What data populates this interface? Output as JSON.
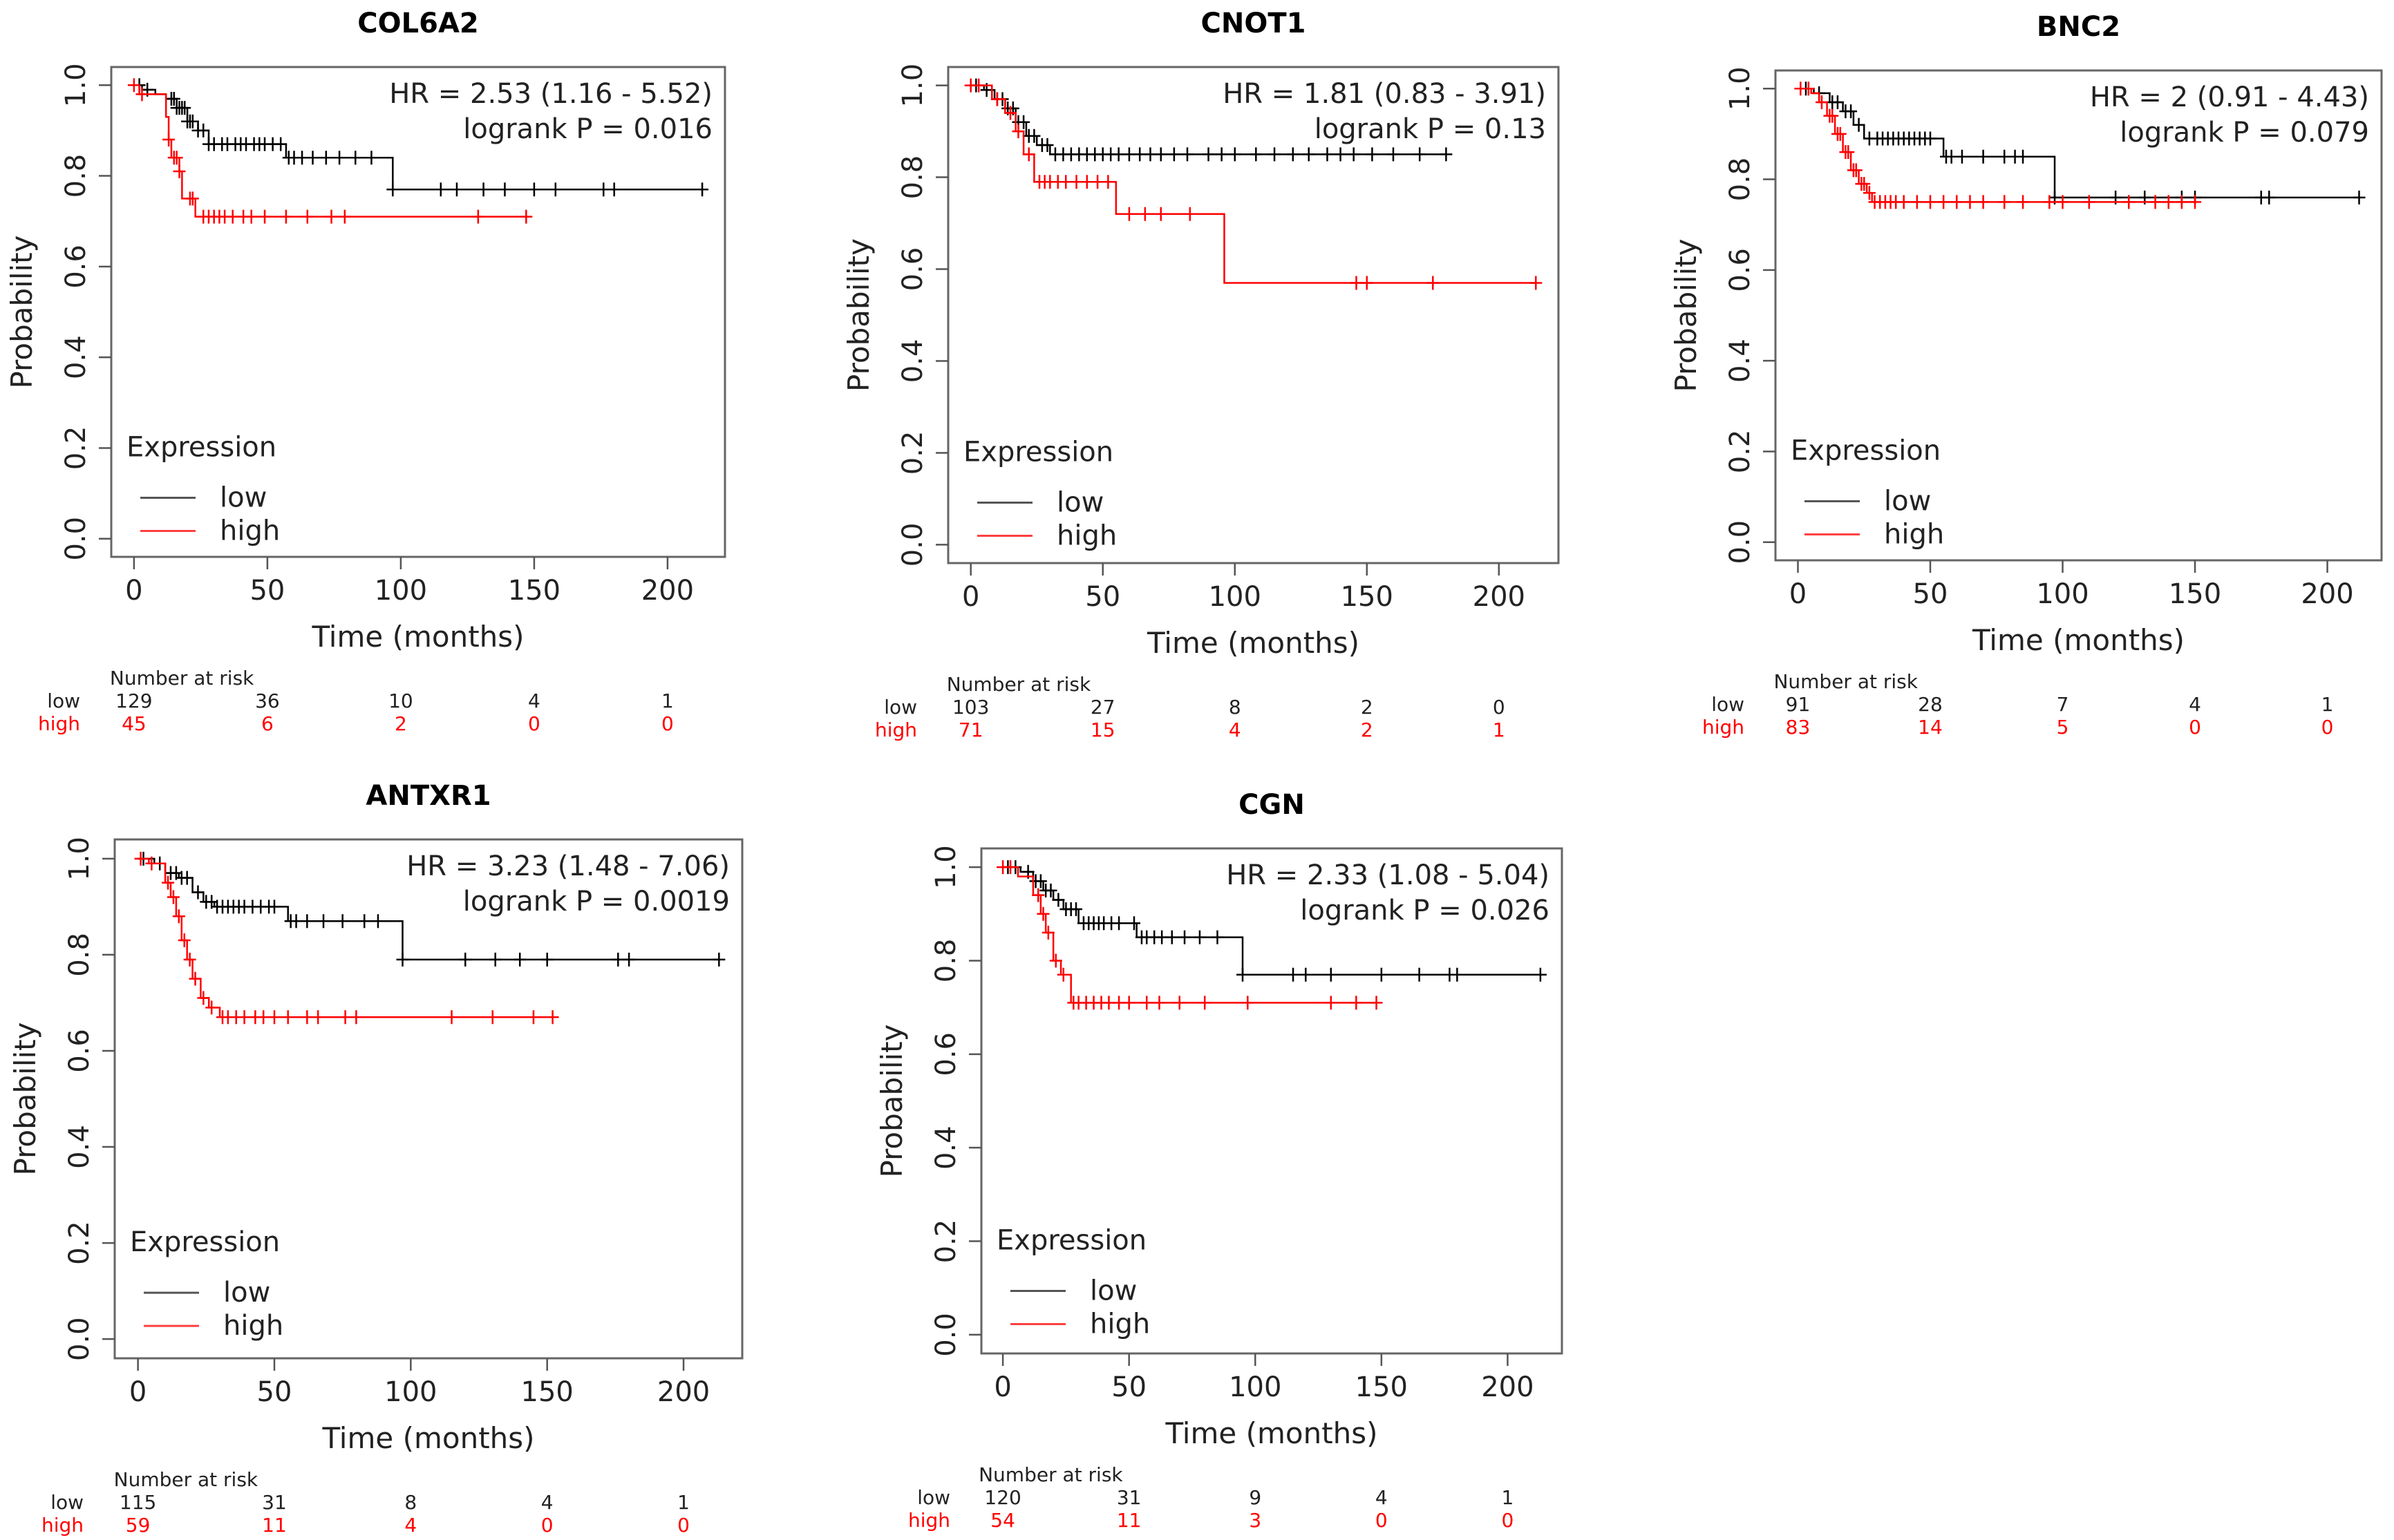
{
  "chart_data": [
    {
      "type": "line",
      "subtype": "kaplan-meier",
      "title": "COL6A2",
      "hr_text": "HR = 2.53 (1.16 - 5.52)",
      "logrank_text": "logrank P = 0.016",
      "xlabel": "Time (months)",
      "ylabel": "Probability",
      "xlim": [
        0,
        213
      ],
      "ylim": [
        0,
        1
      ],
      "xticks": [
        "0",
        "50",
        "100",
        "150",
        "200"
      ],
      "yticks": [
        "0.0",
        "0.2",
        "0.4",
        "0.6",
        "0.8",
        "1.0"
      ],
      "legend": {
        "title": "Expression",
        "low": "low",
        "high": "high",
        "placement": "bottom-left"
      },
      "risk": {
        "title": "Number at risk",
        "low_label": "low",
        "high_label": "high",
        "times": [
          0,
          50,
          100,
          150,
          200
        ],
        "low": [
          "129",
          "36",
          "10",
          "4",
          "1"
        ],
        "high": [
          "45",
          "6",
          "2",
          "0",
          "0"
        ]
      },
      "series": [
        {
          "name": "low",
          "color": "#000000",
          "steps": [
            [
              0,
              1
            ],
            [
              3,
              0.99
            ],
            [
              8,
              0.98
            ],
            [
              12,
              0.97
            ],
            [
              16,
              0.95
            ],
            [
              20,
              0.92
            ],
            [
              24,
              0.9
            ],
            [
              28,
              0.87
            ],
            [
              57,
              0.84
            ],
            [
              97,
              0.77
            ],
            [
              213,
              0.77
            ]
          ],
          "censors": [
            2,
            5,
            14,
            15,
            16,
            17,
            18,
            19,
            20,
            21,
            22,
            24,
            26,
            28,
            30,
            33,
            35,
            38,
            40,
            42,
            45,
            47,
            49,
            52,
            55,
            58,
            60,
            63,
            67,
            72,
            77,
            83,
            89,
            97,
            115,
            121,
            131,
            139,
            150,
            158,
            176,
            180,
            213
          ]
        },
        {
          "name": "high",
          "color": "#ff0000",
          "steps": [
            [
              0,
              1
            ],
            [
              2,
              0.98
            ],
            [
              12,
              0.93
            ],
            [
              13,
              0.88
            ],
            [
              14,
              0.84
            ],
            [
              17,
              0.81
            ],
            [
              18,
              0.75
            ],
            [
              23,
              0.71
            ],
            [
              147,
              0.71
            ]
          ],
          "censors": [
            0,
            3,
            13,
            15,
            16,
            17,
            21,
            22,
            26,
            28,
            30,
            32,
            34,
            37,
            41,
            44,
            49,
            57,
            65,
            74,
            79,
            129,
            147
          ]
        }
      ]
    },
    {
      "type": "line",
      "subtype": "kaplan-meier",
      "title": "CNOT1",
      "hr_text": "HR = 1.81 (0.83 - 3.91)",
      "logrank_text": "logrank P = 0.13",
      "xlabel": "Time (months)",
      "ylabel": "Probability",
      "xlim": [
        0,
        214
      ],
      "ylim": [
        0,
        1
      ],
      "xticks": [
        "0",
        "50",
        "100",
        "150",
        "200"
      ],
      "yticks": [
        "0.0",
        "0.2",
        "0.4",
        "0.6",
        "0.8",
        "1.0"
      ],
      "legend": {
        "title": "Expression",
        "low": "low",
        "high": "high",
        "placement": "bottom-left"
      },
      "risk": {
        "title": "Number at risk",
        "low_label": "low",
        "high_label": "high",
        "times": [
          0,
          50,
          100,
          150,
          200
        ],
        "low": [
          "103",
          "27",
          "8",
          "2",
          "0"
        ],
        "high": [
          "71",
          "15",
          "4",
          "2",
          "1"
        ]
      },
      "series": [
        {
          "name": "low",
          "color": "#000000",
          "steps": [
            [
              0,
              1
            ],
            [
              5,
              0.99
            ],
            [
              9,
              0.97
            ],
            [
              13,
              0.95
            ],
            [
              17,
              0.92
            ],
            [
              21,
              0.89
            ],
            [
              25,
              0.87
            ],
            [
              30,
              0.85
            ],
            [
              180,
              0.85
            ]
          ],
          "censors": [
            2,
            6,
            10,
            12,
            14,
            16,
            18,
            20,
            22,
            24,
            27,
            29,
            32,
            35,
            38,
            41,
            44,
            47,
            50,
            53,
            56,
            60,
            64,
            68,
            72,
            77,
            82,
            90,
            95,
            100,
            108,
            115,
            122,
            128,
            135,
            140,
            145,
            152,
            160,
            170,
            180
          ]
        },
        {
          "name": "high",
          "color": "#ff0000",
          "steps": [
            [
              0,
              1
            ],
            [
              8,
              0.97
            ],
            [
              13,
              0.94
            ],
            [
              17,
              0.9
            ],
            [
              20,
              0.85
            ],
            [
              24,
              0.79
            ],
            [
              55,
              0.72
            ],
            [
              96,
              0.57
            ],
            [
              214,
              0.57
            ]
          ],
          "censors": [
            0,
            3,
            10,
            15,
            18,
            22,
            26,
            28,
            30,
            33,
            36,
            40,
            44,
            48,
            52,
            60,
            66,
            72,
            83,
            146,
            150,
            175,
            214
          ]
        }
      ]
    },
    {
      "type": "line",
      "subtype": "kaplan-meier",
      "title": "BNC2",
      "hr_text": "HR = 2 (0.91 - 4.43)",
      "logrank_text": "logrank P = 0.079",
      "xlabel": "Time (months)",
      "ylabel": "Probability",
      "xlim": [
        0,
        212
      ],
      "ylim": [
        0,
        1
      ],
      "xticks": [
        "0",
        "50",
        "100",
        "150",
        "200"
      ],
      "yticks": [
        "0.0",
        "0.2",
        "0.4",
        "0.6",
        "0.8",
        "1.0"
      ],
      "legend": {
        "title": "Expression",
        "low": "low",
        "high": "high",
        "placement": "bottom-left"
      },
      "risk": {
        "title": "Number at risk",
        "low_label": "low",
        "high_label": "high",
        "times": [
          0,
          50,
          100,
          150,
          200
        ],
        "low": [
          "91",
          "28",
          "7",
          "4",
          "1"
        ],
        "high": [
          "83",
          "14",
          "5",
          "0",
          "0"
        ]
      },
      "series": [
        {
          "name": "low",
          "color": "#000000",
          "steps": [
            [
              0,
              1
            ],
            [
              6,
              0.99
            ],
            [
              12,
              0.97
            ],
            [
              17,
              0.95
            ],
            [
              21,
              0.92
            ],
            [
              25,
              0.89
            ],
            [
              55,
              0.85
            ],
            [
              97,
              0.76
            ],
            [
              212,
              0.76
            ]
          ],
          "censors": [
            3,
            8,
            13,
            15,
            18,
            20,
            23,
            27,
            30,
            32,
            34,
            36,
            38,
            40,
            42,
            44,
            46,
            48,
            50,
            56,
            58,
            62,
            70,
            78,
            82,
            85,
            97,
            120,
            131,
            145,
            150,
            175,
            178,
            212
          ]
        },
        {
          "name": "high",
          "color": "#ff0000",
          "steps": [
            [
              0,
              1
            ],
            [
              5,
              0.99
            ],
            [
              8,
              0.97
            ],
            [
              11,
              0.94
            ],
            [
              14,
              0.9
            ],
            [
              17,
              0.86
            ],
            [
              20,
              0.82
            ],
            [
              23,
              0.79
            ],
            [
              26,
              0.77
            ],
            [
              28,
              0.75
            ],
            [
              150,
              0.75
            ]
          ],
          "censors": [
            1,
            4,
            9,
            12,
            13,
            15,
            16,
            18,
            19,
            21,
            22,
            24,
            25,
            27,
            29,
            31,
            33,
            35,
            37,
            40,
            45,
            50,
            55,
            60,
            65,
            70,
            78,
            85,
            95,
            100,
            110,
            125,
            135,
            140,
            145,
            150
          ]
        }
      ]
    },
    {
      "type": "line",
      "subtype": "kaplan-meier",
      "title": "ANTXR1",
      "hr_text": "HR = 3.23 (1.48 - 7.06)",
      "logrank_text": "logrank P = 0.0019",
      "xlabel": "Time (months)",
      "ylabel": "Probability",
      "xlim": [
        0,
        213
      ],
      "ylim": [
        0,
        1
      ],
      "xticks": [
        "0",
        "50",
        "100",
        "150",
        "200"
      ],
      "yticks": [
        "0.0",
        "0.2",
        "0.4",
        "0.6",
        "0.8",
        "1.0"
      ],
      "legend": {
        "title": "Expression",
        "low": "low",
        "high": "high",
        "placement": "bottom-left"
      },
      "risk": {
        "title": "Number at risk",
        "low_label": "low",
        "high_label": "high",
        "times": [
          0,
          50,
          100,
          150,
          200
        ],
        "low": [
          "115",
          "31",
          "8",
          "4",
          "1"
        ],
        "high": [
          "59",
          "11",
          "4",
          "0",
          "0"
        ]
      },
      "series": [
        {
          "name": "low",
          "color": "#000000",
          "steps": [
            [
              0,
              1
            ],
            [
              6,
              0.99
            ],
            [
              10,
              0.97
            ],
            [
              15,
              0.96
            ],
            [
              20,
              0.93
            ],
            [
              24,
              0.91
            ],
            [
              28,
              0.9
            ],
            [
              55,
              0.87
            ],
            [
              97,
              0.79
            ],
            [
              213,
              0.79
            ]
          ],
          "censors": [
            2,
            8,
            12,
            14,
            16,
            18,
            22,
            25,
            27,
            29,
            31,
            33,
            35,
            37,
            39,
            42,
            45,
            48,
            50,
            56,
            58,
            62,
            68,
            75,
            83,
            88,
            97,
            120,
            131,
            140,
            150,
            176,
            180,
            213
          ]
        },
        {
          "name": "high",
          "color": "#ff0000",
          "steps": [
            [
              0,
              1
            ],
            [
              4,
              0.99
            ],
            [
              10,
              0.95
            ],
            [
              12,
              0.92
            ],
            [
              14,
              0.88
            ],
            [
              16,
              0.83
            ],
            [
              18,
              0.79
            ],
            [
              20,
              0.75
            ],
            [
              23,
              0.71
            ],
            [
              26,
              0.69
            ],
            [
              30,
              0.67
            ],
            [
              152,
              0.67
            ]
          ],
          "censors": [
            1,
            5,
            11,
            13,
            15,
            17,
            19,
            21,
            24,
            27,
            31,
            33,
            36,
            39,
            43,
            46,
            50,
            55,
            62,
            66,
            76,
            80,
            115,
            130,
            145,
            152
          ]
        }
      ]
    },
    {
      "type": "line",
      "subtype": "kaplan-meier",
      "title": "CGN",
      "hr_text": "HR = 2.33 (1.08 - 5.04)",
      "logrank_text": "logrank P = 0.026",
      "xlabel": "Time (months)",
      "ylabel": "Probability",
      "xlim": [
        0,
        213
      ],
      "ylim": [
        0,
        1
      ],
      "xticks": [
        "0",
        "50",
        "100",
        "150",
        "200"
      ],
      "yticks": [
        "0.0",
        "0.2",
        "0.4",
        "0.6",
        "0.8",
        "1.0"
      ],
      "legend": {
        "title": "Expression",
        "low": "low",
        "high": "high",
        "placement": "bottom-left"
      },
      "risk": {
        "title": "Number at risk",
        "low_label": "low",
        "high_label": "high",
        "times": [
          0,
          50,
          100,
          150,
          200
        ],
        "low": [
          "120",
          "31",
          "9",
          "4",
          "1"
        ],
        "high": [
          "54",
          "11",
          "3",
          "0",
          "0"
        ]
      },
      "series": [
        {
          "name": "low",
          "color": "#000000",
          "steps": [
            [
              0,
              1
            ],
            [
              7,
              0.99
            ],
            [
              12,
              0.97
            ],
            [
              16,
              0.95
            ],
            [
              20,
              0.93
            ],
            [
              24,
              0.91
            ],
            [
              30,
              0.88
            ],
            [
              53,
              0.85
            ],
            [
              95,
              0.77
            ],
            [
              213,
              0.77
            ]
          ],
          "censors": [
            2,
            5,
            10,
            13,
            15,
            17,
            19,
            22,
            25,
            27,
            29,
            32,
            34,
            36,
            38,
            40,
            43,
            46,
            52,
            55,
            57,
            60,
            63,
            67,
            72,
            78,
            85,
            95,
            115,
            120,
            130,
            150,
            165,
            177,
            180,
            213
          ]
        },
        {
          "name": "high",
          "color": "#ff0000",
          "steps": [
            [
              0,
              1
            ],
            [
              6,
              0.98
            ],
            [
              12,
              0.94
            ],
            [
              15,
              0.9
            ],
            [
              17,
              0.86
            ],
            [
              20,
              0.8
            ],
            [
              23,
              0.77
            ],
            [
              27,
              0.71
            ],
            [
              148,
              0.71
            ]
          ],
          "censors": [
            0,
            3,
            14,
            16,
            18,
            21,
            24,
            28,
            30,
            33,
            36,
            39,
            42,
            46,
            50,
            57,
            62,
            70,
            80,
            97,
            130,
            140,
            148
          ]
        }
      ]
    }
  ]
}
